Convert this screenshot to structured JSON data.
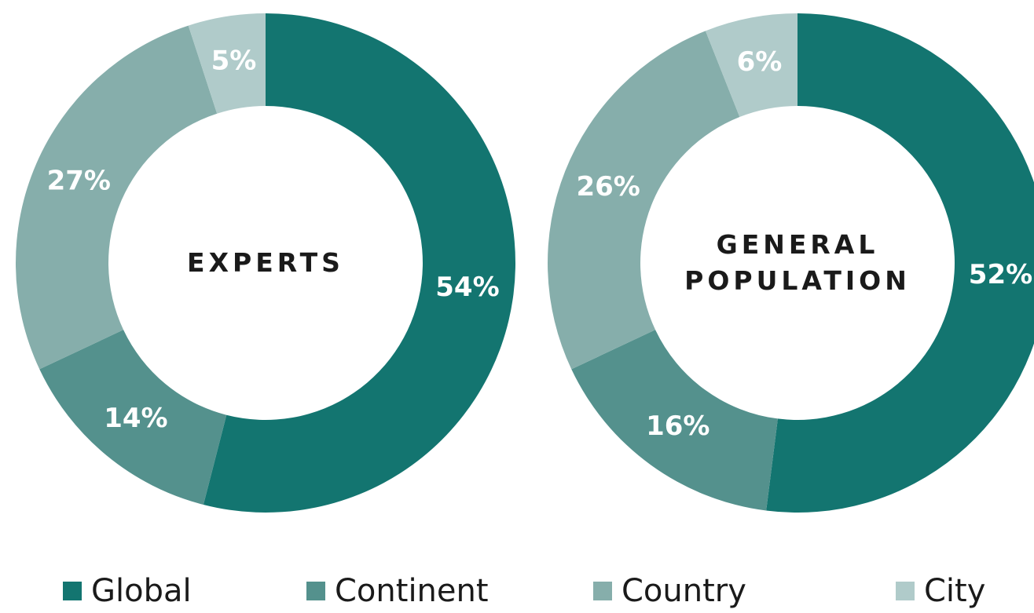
{
  "chart_data": [
    {
      "type": "pie",
      "title": "EXPERTS",
      "categories": [
        "Global",
        "Continent",
        "Country",
        "City"
      ],
      "values": [
        54,
        14,
        27,
        5
      ],
      "value_labels": [
        "54%",
        "14%",
        "27%",
        "5%"
      ],
      "colors": [
        "#137570",
        "#54918d",
        "#86aeab",
        "#b0cbca"
      ]
    },
    {
      "type": "pie",
      "title": "GENERAL POPULATION",
      "categories": [
        "Global",
        "Continent",
        "Country",
        "City"
      ],
      "values": [
        52,
        16,
        26,
        6
      ],
      "value_labels": [
        "52%",
        "16%",
        "26%",
        "6%"
      ],
      "colors": [
        "#137570",
        "#54918d",
        "#86aeab",
        "#b0cbca"
      ]
    }
  ]
}
